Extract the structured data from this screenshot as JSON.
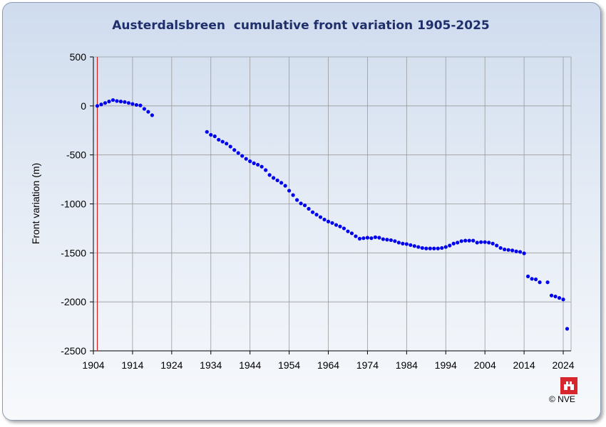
{
  "chart_data": {
    "type": "scatter",
    "title": "Austerdalsbreen  cumulative front variation 1905-2025",
    "ylabel": "Front variation (m)",
    "xlabel": "",
    "xlim": [
      1904,
      2026
    ],
    "ylim": [
      -2500,
      500
    ],
    "xticks": [
      1904,
      1914,
      1924,
      1934,
      1944,
      1954,
      1964,
      1974,
      1984,
      1994,
      2004,
      2014,
      2024
    ],
    "yticks": [
      500,
      0,
      -500,
      -1000,
      -1500,
      -2000,
      -2500
    ],
    "reference_line_x": 1905,
    "grid": true,
    "series": [
      {
        "color": "#0000ee",
        "points": [
          [
            1905,
            0
          ],
          [
            1906,
            15
          ],
          [
            1907,
            30
          ],
          [
            1908,
            45
          ],
          [
            1909,
            60
          ],
          [
            1910,
            50
          ],
          [
            1911,
            45
          ],
          [
            1912,
            40
          ],
          [
            1913,
            30
          ],
          [
            1914,
            20
          ],
          [
            1915,
            10
          ],
          [
            1916,
            5
          ],
          [
            1917,
            -30
          ],
          [
            1918,
            -60
          ],
          [
            1919,
            -95
          ],
          [
            1933,
            -265
          ],
          [
            1934,
            -295
          ],
          [
            1935,
            -310
          ],
          [
            1936,
            -345
          ],
          [
            1937,
            -365
          ],
          [
            1938,
            -385
          ],
          [
            1939,
            -415
          ],
          [
            1940,
            -450
          ],
          [
            1941,
            -480
          ],
          [
            1942,
            -510
          ],
          [
            1943,
            -540
          ],
          [
            1944,
            -565
          ],
          [
            1945,
            -585
          ],
          [
            1946,
            -600
          ],
          [
            1947,
            -620
          ],
          [
            1948,
            -655
          ],
          [
            1949,
            -705
          ],
          [
            1950,
            -735
          ],
          [
            1951,
            -760
          ],
          [
            1952,
            -785
          ],
          [
            1953,
            -815
          ],
          [
            1954,
            -865
          ],
          [
            1955,
            -910
          ],
          [
            1956,
            -960
          ],
          [
            1957,
            -995
          ],
          [
            1958,
            -1015
          ],
          [
            1959,
            -1050
          ],
          [
            1960,
            -1085
          ],
          [
            1961,
            -1110
          ],
          [
            1962,
            -1135
          ],
          [
            1963,
            -1160
          ],
          [
            1964,
            -1180
          ],
          [
            1965,
            -1195
          ],
          [
            1966,
            -1215
          ],
          [
            1967,
            -1230
          ],
          [
            1968,
            -1250
          ],
          [
            1969,
            -1280
          ],
          [
            1970,
            -1300
          ],
          [
            1971,
            -1330
          ],
          [
            1972,
            -1355
          ],
          [
            1973,
            -1350
          ],
          [
            1974,
            -1345
          ],
          [
            1975,
            -1350
          ],
          [
            1976,
            -1340
          ],
          [
            1977,
            -1345
          ],
          [
            1978,
            -1360
          ],
          [
            1979,
            -1365
          ],
          [
            1980,
            -1370
          ],
          [
            1981,
            -1380
          ],
          [
            1982,
            -1395
          ],
          [
            1983,
            -1405
          ],
          [
            1984,
            -1410
          ],
          [
            1985,
            -1420
          ],
          [
            1986,
            -1430
          ],
          [
            1987,
            -1440
          ],
          [
            1988,
            -1450
          ],
          [
            1989,
            -1455
          ],
          [
            1990,
            -1455
          ],
          [
            1991,
            -1455
          ],
          [
            1992,
            -1455
          ],
          [
            1993,
            -1450
          ],
          [
            1994,
            -1440
          ],
          [
            1995,
            -1425
          ],
          [
            1996,
            -1405
          ],
          [
            1997,
            -1395
          ],
          [
            1998,
            -1380
          ],
          [
            1999,
            -1375
          ],
          [
            2000,
            -1375
          ],
          [
            2001,
            -1375
          ],
          [
            2002,
            -1395
          ],
          [
            2003,
            -1390
          ],
          [
            2004,
            -1390
          ],
          [
            2005,
            -1395
          ],
          [
            2006,
            -1405
          ],
          [
            2007,
            -1425
          ],
          [
            2008,
            -1450
          ],
          [
            2009,
            -1465
          ],
          [
            2010,
            -1470
          ],
          [
            2011,
            -1475
          ],
          [
            2012,
            -1485
          ],
          [
            2013,
            -1490
          ],
          [
            2014,
            -1505
          ],
          [
            2015,
            -1740
          ],
          [
            2016,
            -1765
          ],
          [
            2017,
            -1770
          ],
          [
            2018,
            -1800
          ],
          [
            2020,
            -1800
          ],
          [
            2021,
            -1935
          ],
          [
            2022,
            -1945
          ],
          [
            2023,
            -1960
          ],
          [
            2024,
            -1975
          ],
          [
            2025,
            -2275
          ]
        ]
      }
    ]
  },
  "footer": {
    "copyright": "© NVE",
    "logo_text": "NVE"
  }
}
